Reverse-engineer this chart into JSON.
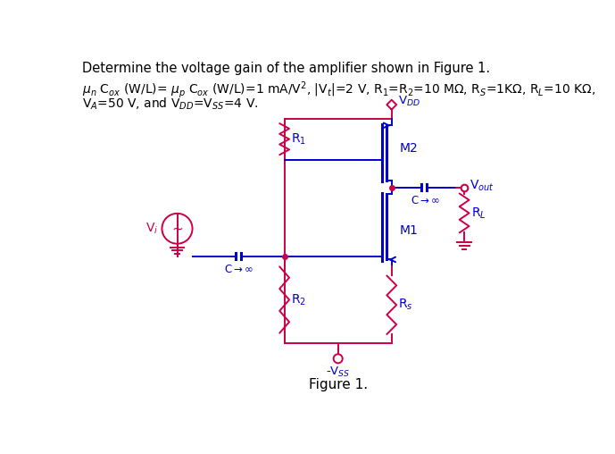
{
  "wire_color": "#cc0044",
  "mosfet_color": "#0000cc",
  "text_color_black": "#000000",
  "background": "#ffffff",
  "figsize": [
    6.89,
    5.08
  ],
  "dpi": 100,
  "fig_label": "Figure 1.",
  "header1": "Determine the voltage gain of the amplifier shown in Figure 1.",
  "header2": "$\\mu_n$ C$_{ox}$ (W/L)= $\\mu_p$ C$_{ox}$ (W/L)=1 mA/V$^2$, |V$_t$|=2 V, R$_1$=R$_2$=10 M$\\Omega$, R$_S$=1K$\\Omega$, R$_L$=10 K$\\Omega$,",
  "header3": "V$_A$=50 V, and V$_{DD}$=V$_{SS}$=4 V."
}
